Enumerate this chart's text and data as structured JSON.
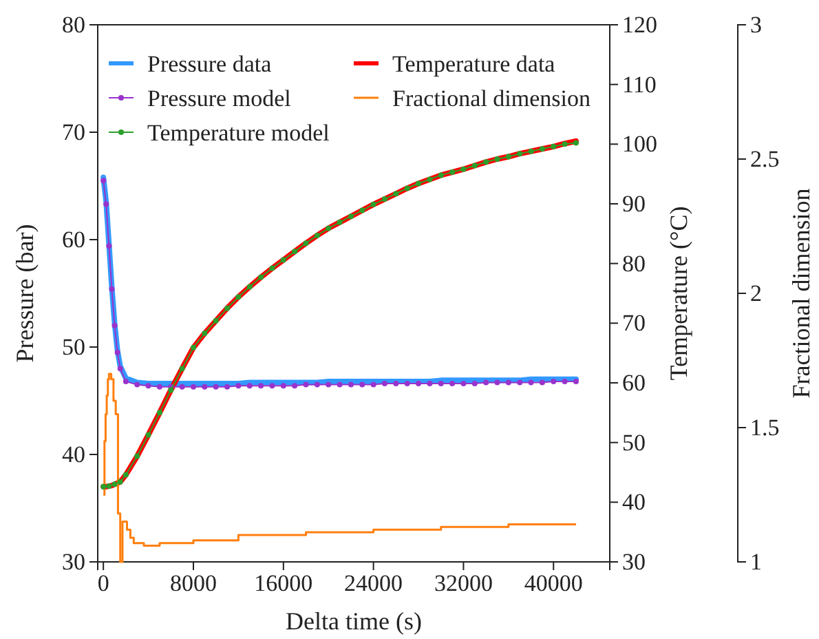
{
  "chart_data": {
    "type": "line",
    "xlabel": "Delta time (s)",
    "ylabel": "Pressure (bar)",
    "y2label": "Temperature (°C)",
    "y3label": "Fractional dimension",
    "x": [
      0,
      250,
      500,
      750,
      1000,
      1250,
      1500,
      2000,
      3000,
      4000,
      5000,
      6000,
      7000,
      8000,
      9000,
      10000,
      11000,
      12000,
      13000,
      14000,
      15000,
      16000,
      17000,
      18000,
      19000,
      20000,
      21000,
      22000,
      23000,
      24000,
      25000,
      26000,
      27000,
      28000,
      29000,
      30000,
      31000,
      32000,
      33000,
      34000,
      35000,
      36000,
      37000,
      38000,
      39000,
      40000,
      41000,
      42000
    ],
    "xlim": [
      -500,
      45000
    ],
    "xticks": [
      0,
      8000,
      16000,
      24000,
      32000,
      40000
    ],
    "ylim": [
      30,
      80
    ],
    "yticks": [
      30,
      40,
      50,
      60,
      70,
      80
    ],
    "y2lim": [
      30,
      120
    ],
    "y2ticks": [
      30,
      40,
      50,
      60,
      70,
      80,
      90,
      100,
      110,
      120
    ],
    "y3lim": [
      1,
      3
    ],
    "y3ticks": [
      1,
      1.5,
      2,
      2.5,
      3
    ],
    "legend": "top left",
    "series": [
      {
        "name": "Pressure data",
        "color": "#3399ff",
        "values": [
          65.8,
          63.5,
          59.6,
          55.6,
          52.2,
          49.7,
          48.2,
          47.1,
          46.7,
          46.6,
          46.6,
          46.6,
          46.6,
          46.6,
          46.6,
          46.6,
          46.6,
          46.6,
          46.7,
          46.7,
          46.7,
          46.7,
          46.7,
          46.7,
          46.7,
          46.8,
          46.8,
          46.8,
          46.8,
          46.8,
          46.8,
          46.8,
          46.8,
          46.8,
          46.8,
          46.9,
          46.9,
          46.9,
          46.9,
          46.9,
          46.9,
          46.9,
          46.9,
          47.0,
          47.0,
          47.0,
          47.0,
          47.0
        ]
      },
      {
        "name": "Pressure model",
        "color": "#9933cc",
        "marker": "circle",
        "values": [
          65.5,
          63.3,
          59.4,
          55.4,
          52.0,
          49.5,
          48.0,
          46.8,
          46.5,
          46.4,
          46.3,
          46.3,
          46.3,
          46.3,
          46.3,
          46.3,
          46.3,
          46.4,
          46.4,
          46.4,
          46.4,
          46.4,
          46.4,
          46.5,
          46.5,
          46.5,
          46.5,
          46.5,
          46.5,
          46.5,
          46.6,
          46.6,
          46.6,
          46.6,
          46.6,
          46.6,
          46.6,
          46.6,
          46.6,
          46.7,
          46.7,
          46.7,
          46.7,
          46.7,
          46.7,
          46.8,
          46.8,
          46.8
        ]
      },
      {
        "name": "Temperature model",
        "color": "#2ca02c",
        "marker": "circle",
        "axis": "y2",
        "x": [
          0,
          500,
          1000,
          1500,
          2000,
          3000,
          4000,
          5000,
          6000,
          7000,
          8000,
          9000,
          10000,
          11000,
          12000,
          13000,
          14000,
          15000,
          16000,
          17000,
          18000,
          19000,
          20000,
          21000,
          22000,
          23000,
          24000,
          25000,
          26000,
          27000,
          28000,
          29000,
          30000,
          31000,
          32000,
          33000,
          34000,
          35000,
          36000,
          37000,
          38000,
          39000,
          40000,
          41000,
          42000
        ],
        "values": [
          42.6,
          42.7,
          43.0,
          43.4,
          44.6,
          47.7,
          51.3,
          55.0,
          58.8,
          62.4,
          65.9,
          68.3,
          70.4,
          72.5,
          74.4,
          76.1,
          77.7,
          79.2,
          80.6,
          82.0,
          83.4,
          84.7,
          85.9,
          86.9,
          87.9,
          88.9,
          89.9,
          90.8,
          91.7,
          92.6,
          93.4,
          94.1,
          94.8,
          95.3,
          95.8,
          96.4,
          97.0,
          97.5,
          97.9,
          98.4,
          98.8,
          99.2,
          99.6,
          100.0,
          100.2
        ]
      },
      {
        "name": "Temperature data",
        "color": "#ff0000",
        "axis": "y2",
        "values": [
          42.6,
          42.6,
          42.7,
          42.8,
          43.0,
          43.2,
          43.4,
          44.6,
          47.7,
          51.3,
          55.0,
          58.8,
          62.4,
          65.9,
          68.3,
          70.4,
          72.5,
          74.4,
          76.1,
          77.7,
          79.2,
          80.6,
          82.0,
          83.4,
          84.7,
          85.9,
          86.9,
          87.9,
          88.9,
          89.9,
          90.8,
          91.7,
          92.6,
          93.4,
          94.1,
          94.8,
          95.3,
          95.8,
          96.4,
          97.0,
          97.5,
          97.9,
          98.4,
          98.8,
          99.2,
          99.6,
          100.1,
          100.5
        ]
      },
      {
        "name": "Fractional dimension",
        "color": "#ff7f0e",
        "type": "step",
        "axis": "y3",
        "x": [
          0,
          100,
          200,
          300,
          400,
          500,
          700,
          900,
          1100,
          1300,
          1500,
          1700,
          2100,
          2400,
          2700,
          3100,
          3600,
          4200,
          5000,
          7000,
          8000,
          12000,
          18000,
          24000,
          30000,
          36000,
          42000
        ],
        "values": [
          1.25,
          1.45,
          1.55,
          1.62,
          1.68,
          1.7,
          1.68,
          1.6,
          1.55,
          1.18,
          1.0,
          1.15,
          1.12,
          1.09,
          1.07,
          1.07,
          1.06,
          1.06,
          1.07,
          1.07,
          1.08,
          1.1,
          1.11,
          1.12,
          1.13,
          1.14,
          1.14
        ]
      }
    ]
  }
}
